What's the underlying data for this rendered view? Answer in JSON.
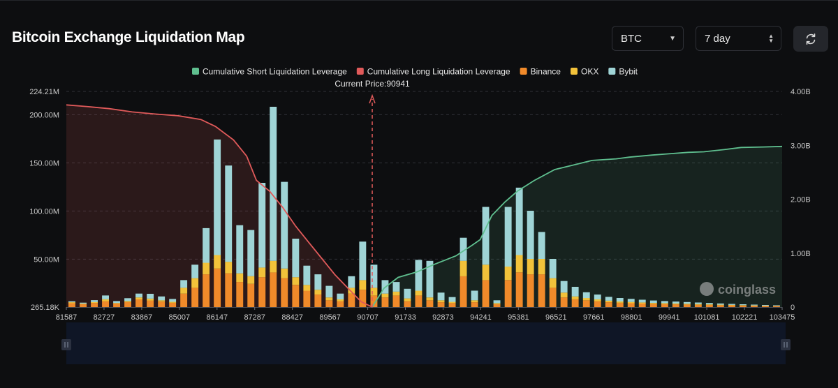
{
  "page": {
    "title": "Bitcoin Exchange Liquidation Map"
  },
  "controls": {
    "coin_select": "BTC",
    "period_select": "7 day",
    "refresh_icon": "refresh-icon"
  },
  "colors": {
    "short_line": "#5fbf8f",
    "long_line": "#e05a5a",
    "binance": "#f08a2a",
    "okx": "#f2c23a",
    "bybit": "#9fd4d6",
    "current_price": "#e05a5a"
  },
  "watermark": "coinglass",
  "chart_data": {
    "type": "bar",
    "title": "Bitcoin Exchange Liquidation Map",
    "current_price_label": "Current Price:90941",
    "current_price": 90941,
    "x_range": [
      81587,
      103475
    ],
    "x_tick_labels": [
      "81587",
      "82727",
      "83867",
      "85007",
      "86147",
      "87287",
      "88427",
      "89567",
      "90707",
      "91733",
      "92873",
      "94241",
      "95381",
      "96521",
      "97661",
      "98801",
      "99941",
      "101081",
      "102221",
      "103475"
    ],
    "left_axis": {
      "min": 265180,
      "max": 224210000,
      "tick_values": [
        265180,
        50000000,
        100000000,
        150000000,
        200000000,
        224210000
      ],
      "tick_labels": [
        "265.18K",
        "50.00M",
        "100.00M",
        "150.00M",
        "200.00M",
        "224.21M"
      ]
    },
    "right_axis": {
      "min": 0,
      "max": 4000000000,
      "tick_values": [
        0,
        1000000000,
        2000000000,
        3000000000,
        4000000000
      ],
      "tick_labels": [
        "0",
        "1.00B",
        "2.00B",
        "3.00B",
        "4.00B"
      ]
    },
    "legend": [
      {
        "name": "Cumulative Short Liquidation Leverage",
        "color": "#5fbf8f"
      },
      {
        "name": "Cumulative Long Liquidation Leverage",
        "color": "#e05a5a"
      },
      {
        "name": "Binance",
        "color": "#f08a2a"
      },
      {
        "name": "OKX",
        "color": "#f2c23a"
      },
      {
        "name": "Bybit",
        "color": "#9fd4d6"
      }
    ],
    "series": [
      {
        "name": "Cumulative Long Liquidation Leverage",
        "type": "line",
        "axis": "right",
        "points": [
          [
            81587,
            3750000000.0
          ],
          [
            82200,
            3720000000.0
          ],
          [
            82900,
            3680000000.0
          ],
          [
            83600,
            3620000000.0
          ],
          [
            84300,
            3580000000.0
          ],
          [
            85000,
            3550000000.0
          ],
          [
            85700,
            3480000000.0
          ],
          [
            86147,
            3350000000.0
          ],
          [
            86700,
            3100000000.0
          ],
          [
            87100,
            2800000000.0
          ],
          [
            87400,
            2350000000.0
          ],
          [
            87800,
            2150000000.0
          ],
          [
            88200,
            1850000000.0
          ],
          [
            88600,
            1500000000.0
          ],
          [
            89000,
            1200000000.0
          ],
          [
            89400,
            900000000.0
          ],
          [
            89800,
            600000000.0
          ],
          [
            90200,
            350000000.0
          ],
          [
            90600,
            100000000.0
          ],
          [
            90941,
            0
          ]
        ]
      },
      {
        "name": "Cumulative Short Liquidation Leverage",
        "type": "line",
        "axis": "right",
        "points": [
          [
            90941,
            0
          ],
          [
            91300,
            350000000.0
          ],
          [
            91733,
            550000000.0
          ],
          [
            92300,
            650000000.0
          ],
          [
            92873,
            800000000.0
          ],
          [
            93500,
            950000000.0
          ],
          [
            94000,
            1150000000.0
          ],
          [
            94241,
            1250000000.0
          ],
          [
            94600,
            1700000000.0
          ],
          [
            95000,
            1950000000.0
          ],
          [
            95381,
            2150000000.0
          ],
          [
            95900,
            2350000000.0
          ],
          [
            96521,
            2550000000.0
          ],
          [
            97200,
            2650000000.0
          ],
          [
            97661,
            2720000000.0
          ],
          [
            98400,
            2750000000.0
          ],
          [
            98801,
            2780000000.0
          ],
          [
            99500,
            2820000000.0
          ],
          [
            99941,
            2840000000.0
          ],
          [
            100600,
            2870000000.0
          ],
          [
            101081,
            2880000000.0
          ],
          [
            101700,
            2920000000.0
          ],
          [
            102221,
            2960000000.0
          ],
          [
            102900,
            2970000000.0
          ],
          [
            103475,
            2980000000.0
          ]
        ]
      },
      {
        "name": "Binance",
        "type": "bar",
        "axis": "left",
        "values": [
          4000000,
          3000000,
          4200000,
          6000000,
          3600000,
          5200000,
          8000000,
          6800000,
          5600000,
          4400000,
          14000000,
          20000000,
          34000000,
          40000000,
          35000000,
          26000000,
          24000000,
          31000000,
          36000000,
          30000000,
          23000000,
          17000000,
          13000000,
          7000000,
          6000000,
          14000000,
          18000000,
          12000000,
          10000000,
          12000000,
          6000000,
          12000000,
          7000000,
          5000000,
          4000000,
          32000000,
          5000000,
          28000000,
          3000000,
          28000000,
          36000000,
          34000000,
          34000000,
          20000000,
          10000000,
          8000000,
          7000000,
          6000000,
          5000000,
          4400000,
          4000000,
          3600000,
          3200000,
          3000000,
          2800000,
          2600000,
          2400000,
          2200000,
          2000000,
          1800000,
          1600000,
          1400000,
          1200000,
          1000000
        ]
      },
      {
        "name": "OKX",
        "type": "bar",
        "axis": "left",
        "values": [
          1000000,
          600000,
          1000000,
          2000000,
          600000,
          1000000,
          2000000,
          2000000,
          1400000,
          1000000,
          6000000,
          10000000,
          12000000,
          14000000,
          12000000,
          9000000,
          8000000,
          10000000,
          12000000,
          10000000,
          8000000,
          6000000,
          5000000,
          3000000,
          2000000,
          6000000,
          10000000,
          8000000,
          4000000,
          4000000,
          3000000,
          5000000,
          3000000,
          2000000,
          1400000,
          16000000,
          2000000,
          16000000,
          1000000,
          14000000,
          18000000,
          16000000,
          16000000,
          10000000,
          5000000,
          3000000,
          2400000,
          2000000,
          1600000,
          1400000,
          1300000,
          1200000,
          1100000,
          1000000,
          900000,
          800000,
          700000,
          600000,
          500000,
          450000,
          400000,
          350000,
          300000,
          250000
        ]
      },
      {
        "name": "Bybit",
        "type": "bar",
        "axis": "left",
        "values": [
          1000000,
          1000000,
          2000000,
          4000000,
          2000000,
          3000000,
          4000000,
          5000000,
          4000000,
          3000000,
          8000000,
          14000000,
          36000000,
          120000000,
          100000000,
          50000000,
          48000000,
          88000000,
          160000000,
          90000000,
          40000000,
          20000000,
          16000000,
          12000000,
          6000000,
          12000000,
          40000000,
          24000000,
          14000000,
          10000000,
          10000000,
          32000000,
          38000000,
          8000000,
          5000000,
          24000000,
          10000000,
          60000000,
          3000000,
          62000000,
          70000000,
          50000000,
          28000000,
          20000000,
          12000000,
          10000000,
          6000000,
          5000000,
          4000000,
          3600000,
          3200000,
          2800000,
          2500000,
          2200000,
          2000000,
          1800000,
          1600000,
          1400000,
          1200000,
          1000000,
          900000,
          800000,
          700000,
          600000
        ]
      }
    ]
  }
}
